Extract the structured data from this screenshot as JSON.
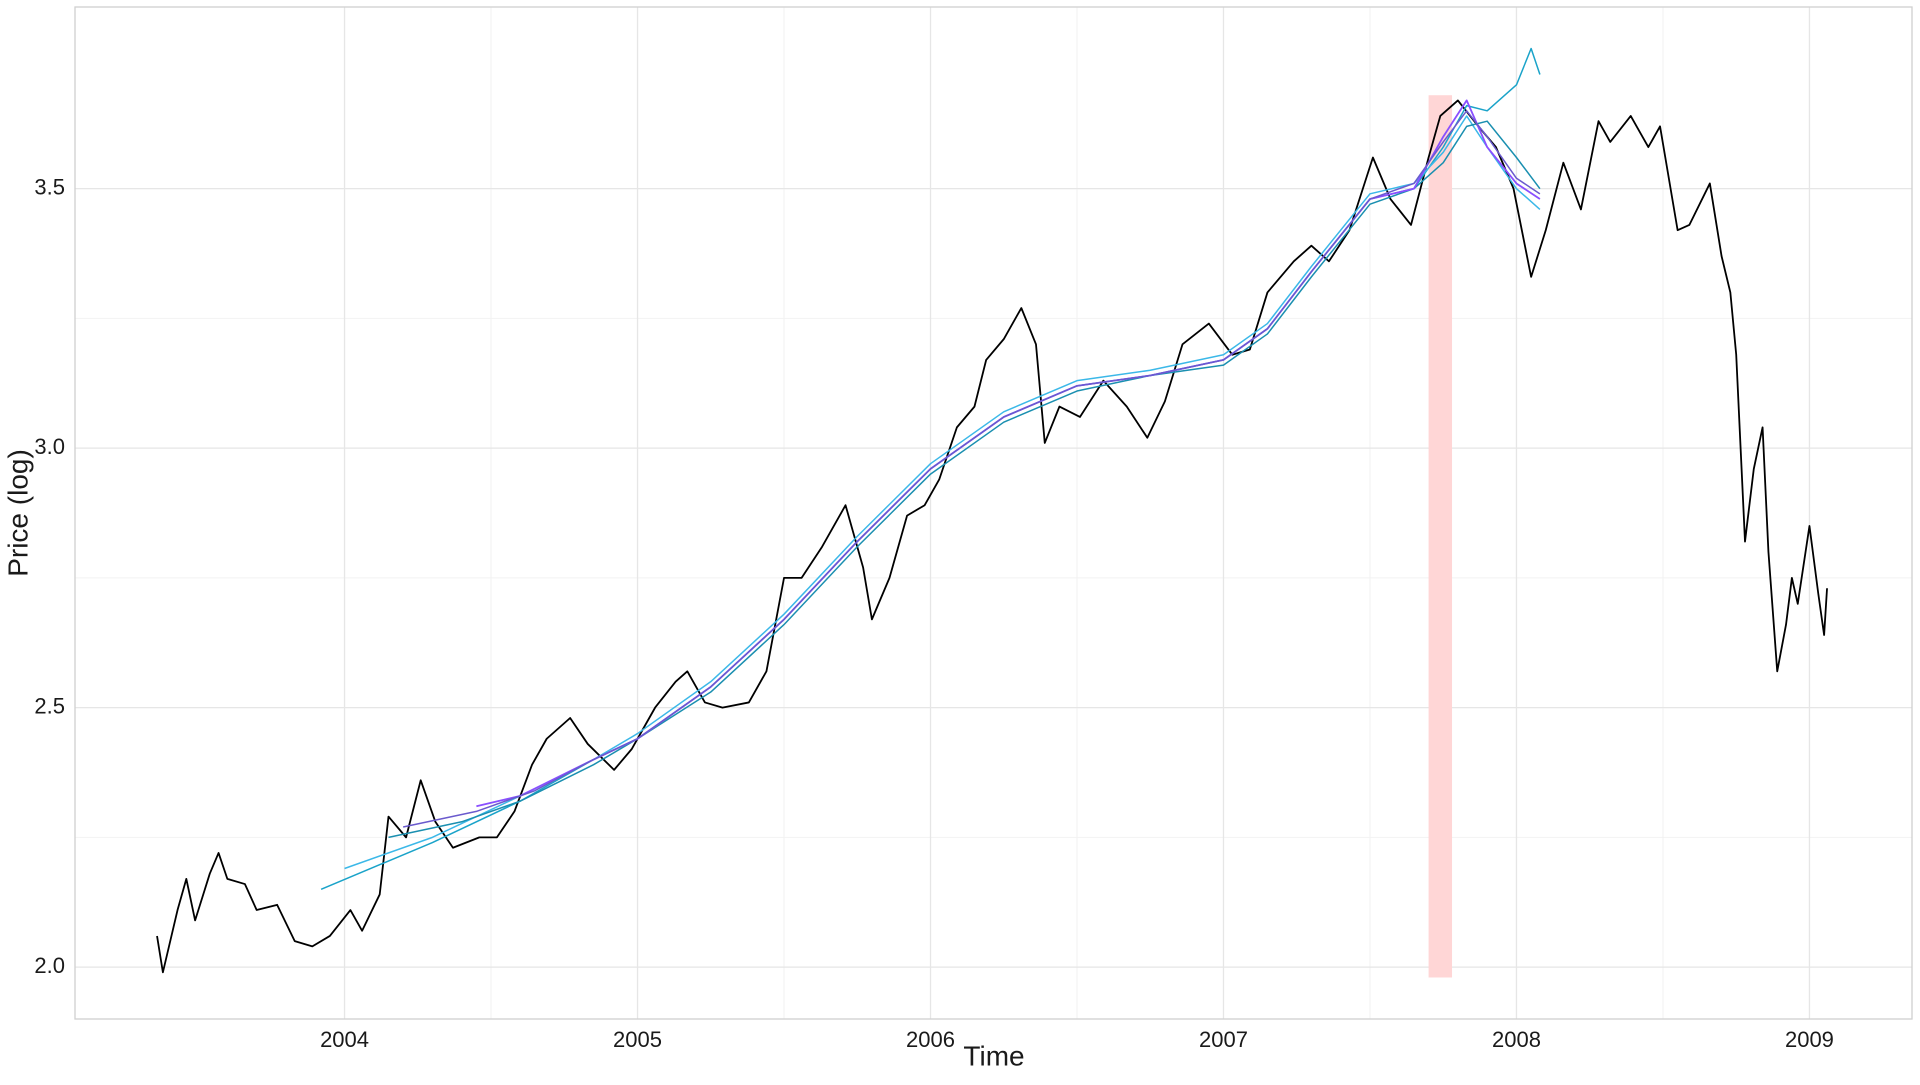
{
  "chart_data": {
    "type": "line",
    "x_label": "Time",
    "y_label": "Price (log)",
    "xlim": [
      2003.08,
      2009.35
    ],
    "ylim": [
      1.9,
      3.85
    ],
    "xticks": [
      2004,
      2005,
      2006,
      2007,
      2008,
      2009
    ],
    "yticks": [
      {
        "value": 2,
        "label": "2.0"
      },
      2.5,
      {
        "value": 3,
        "label": "3.0"
      },
      3.5
    ],
    "grid": true,
    "minor_grid": true,
    "shaded_region": {
      "xlim": [
        2007.7,
        2007.78
      ],
      "ylim": [
        1.98,
        3.68
      ],
      "color": "#ffd6d6"
    },
    "series": [
      {
        "color": "#000000",
        "width": 1.8,
        "x": [
          2003.36,
          2003.38,
          2003.43,
          2003.46,
          2003.49,
          2003.54,
          2003.57,
          2003.6,
          2003.66,
          2003.7,
          2003.77,
          2003.83,
          2003.89,
          2003.95,
          2004.02,
          2004.06,
          2004.12,
          2004.15,
          2004.21,
          2004.26,
          2004.31,
          2004.37,
          2004.46,
          2004.52,
          2004.58,
          2004.64,
          2004.69,
          2004.77,
          2004.83,
          2004.92,
          2004.98,
          2005.06,
          2005.13,
          2005.17,
          2005.23,
          2005.29,
          2005.38,
          2005.44,
          2005.5,
          2005.56,
          2005.63,
          2005.71,
          2005.77,
          2005.8,
          2005.86,
          2005.92,
          2005.98,
          2006.03,
          2006.09,
          2006.15,
          2006.19,
          2006.25,
          2006.31,
          2006.36,
          2006.39,
          2006.44,
          2006.51,
          2006.59,
          2006.67,
          2006.74,
          2006.8,
          2006.86,
          2006.95,
          2007.03,
          2007.09,
          2007.15,
          2007.24,
          2007.3,
          2007.36,
          2007.43,
          2007.51,
          2007.57,
          2007.64,
          2007.7,
          2007.74,
          2007.8,
          2007.87,
          2007.93,
          2007.99,
          2008.05,
          2008.1,
          2008.16,
          2008.22,
          2008.28,
          2008.32,
          2008.39,
          2008.45,
          2008.49,
          2008.55,
          2008.59,
          2008.66,
          2008.7,
          2008.73,
          2008.75,
          2008.78,
          2008.81,
          2008.84,
          2008.86,
          2008.89,
          2008.92,
          2008.94,
          2008.96,
          2009.0,
          2009.03,
          2009.05,
          2009.06
        ],
        "values": [
          2.06,
          1.99,
          2.11,
          2.17,
          2.09,
          2.18,
          2.22,
          2.17,
          2.16,
          2.11,
          2.12,
          2.05,
          2.04,
          2.06,
          2.11,
          2.07,
          2.14,
          2.29,
          2.25,
          2.36,
          2.28,
          2.23,
          2.25,
          2.25,
          2.3,
          2.39,
          2.44,
          2.48,
          2.43,
          2.38,
          2.42,
          2.5,
          2.55,
          2.57,
          2.51,
          2.5,
          2.51,
          2.57,
          2.75,
          2.75,
          2.81,
          2.89,
          2.77,
          2.67,
          2.75,
          2.87,
          2.89,
          2.94,
          3.04,
          3.08,
          3.17,
          3.21,
          3.27,
          3.2,
          3.01,
          3.08,
          3.06,
          3.13,
          3.08,
          3.02,
          3.09,
          3.2,
          3.24,
          3.18,
          3.19,
          3.3,
          3.36,
          3.39,
          3.36,
          3.42,
          3.56,
          3.48,
          3.43,
          3.56,
          3.64,
          3.67,
          3.62,
          3.58,
          3.5,
          3.33,
          3.42,
          3.55,
          3.46,
          3.63,
          3.59,
          3.64,
          3.58,
          3.62,
          3.42,
          3.43,
          3.51,
          3.37,
          3.3,
          3.18,
          2.82,
          2.96,
          3.04,
          2.8,
          2.57,
          2.66,
          2.75,
          2.7,
          2.85,
          2.72,
          2.64,
          2.73
        ]
      },
      {
        "color": "#1aa3c9",
        "width": 1.5,
        "x": [
          2003.92,
          2004.3,
          2004.6,
          2004.85,
          2005.0,
          2005.25,
          2005.5,
          2005.75,
          2006.0,
          2006.25,
          2006.5,
          2006.75,
          2007.0,
          2007.15,
          2007.3,
          2007.5,
          2007.65,
          2007.75,
          2007.83,
          2007.9,
          2008.0,
          2008.05,
          2008.08
        ],
        "values": [
          2.15,
          2.24,
          2.32,
          2.4,
          2.44,
          2.54,
          2.67,
          2.82,
          2.96,
          3.06,
          3.12,
          3.14,
          3.17,
          3.23,
          3.34,
          3.48,
          3.5,
          3.58,
          3.66,
          3.65,
          3.7,
          3.77,
          3.72
        ]
      },
      {
        "color": "#3bb8e8",
        "width": 1.5,
        "x": [
          2004.0,
          2004.3,
          2004.6,
          2004.85,
          2005.0,
          2005.25,
          2005.5,
          2005.75,
          2006.0,
          2006.25,
          2006.5,
          2006.75,
          2007.0,
          2007.15,
          2007.3,
          2007.5,
          2007.65,
          2007.75,
          2007.83,
          2007.9,
          2008.0,
          2008.08
        ],
        "values": [
          2.19,
          2.25,
          2.33,
          2.4,
          2.45,
          2.55,
          2.68,
          2.83,
          2.97,
          3.07,
          3.13,
          3.15,
          3.18,
          3.24,
          3.35,
          3.49,
          3.51,
          3.57,
          3.64,
          3.58,
          3.5,
          3.46
        ]
      },
      {
        "color": "#1a8fb0",
        "width": 1.5,
        "x": [
          2004.15,
          2004.4,
          2004.6,
          2004.85,
          2005.0,
          2005.25,
          2005.5,
          2005.75,
          2006.0,
          2006.25,
          2006.5,
          2006.75,
          2007.0,
          2007.15,
          2007.3,
          2007.5,
          2007.65,
          2007.75,
          2007.83,
          2007.9,
          2008.0,
          2008.08
        ],
        "values": [
          2.25,
          2.28,
          2.32,
          2.39,
          2.44,
          2.53,
          2.66,
          2.81,
          2.95,
          3.05,
          3.11,
          3.14,
          3.16,
          3.22,
          3.33,
          3.47,
          3.5,
          3.55,
          3.62,
          3.63,
          3.56,
          3.5
        ]
      },
      {
        "color": "#8a4fff",
        "width": 1.8,
        "x": [
          2004.45,
          2004.6,
          2004.85,
          2005.0,
          2005.25,
          2005.5,
          2005.75,
          2006.0,
          2006.25,
          2006.5,
          2006.75,
          2007.0,
          2007.15,
          2007.3,
          2007.5,
          2007.65,
          2007.75,
          2007.83,
          2007.9,
          2008.0,
          2008.08
        ],
        "values": [
          2.31,
          2.33,
          2.4,
          2.44,
          2.54,
          2.67,
          2.82,
          2.96,
          3.06,
          3.12,
          3.14,
          3.17,
          3.23,
          3.34,
          3.48,
          3.5,
          3.6,
          3.67,
          3.58,
          3.51,
          3.48
        ]
      },
      {
        "color": "#6a5acd",
        "width": 1.5,
        "x": [
          2004.2,
          2004.45,
          2004.65,
          2004.85,
          2005.0,
          2005.25,
          2005.5,
          2005.75,
          2006.0,
          2006.25,
          2006.5,
          2006.75,
          2007.0,
          2007.15,
          2007.3,
          2007.5,
          2007.65,
          2007.75,
          2007.83,
          2007.9,
          2008.0,
          2008.08
        ],
        "values": [
          2.27,
          2.3,
          2.34,
          2.4,
          2.44,
          2.54,
          2.67,
          2.82,
          2.96,
          3.06,
          3.12,
          3.14,
          3.17,
          3.23,
          3.34,
          3.48,
          3.51,
          3.59,
          3.65,
          3.6,
          3.52,
          3.49
        ]
      }
    ]
  }
}
